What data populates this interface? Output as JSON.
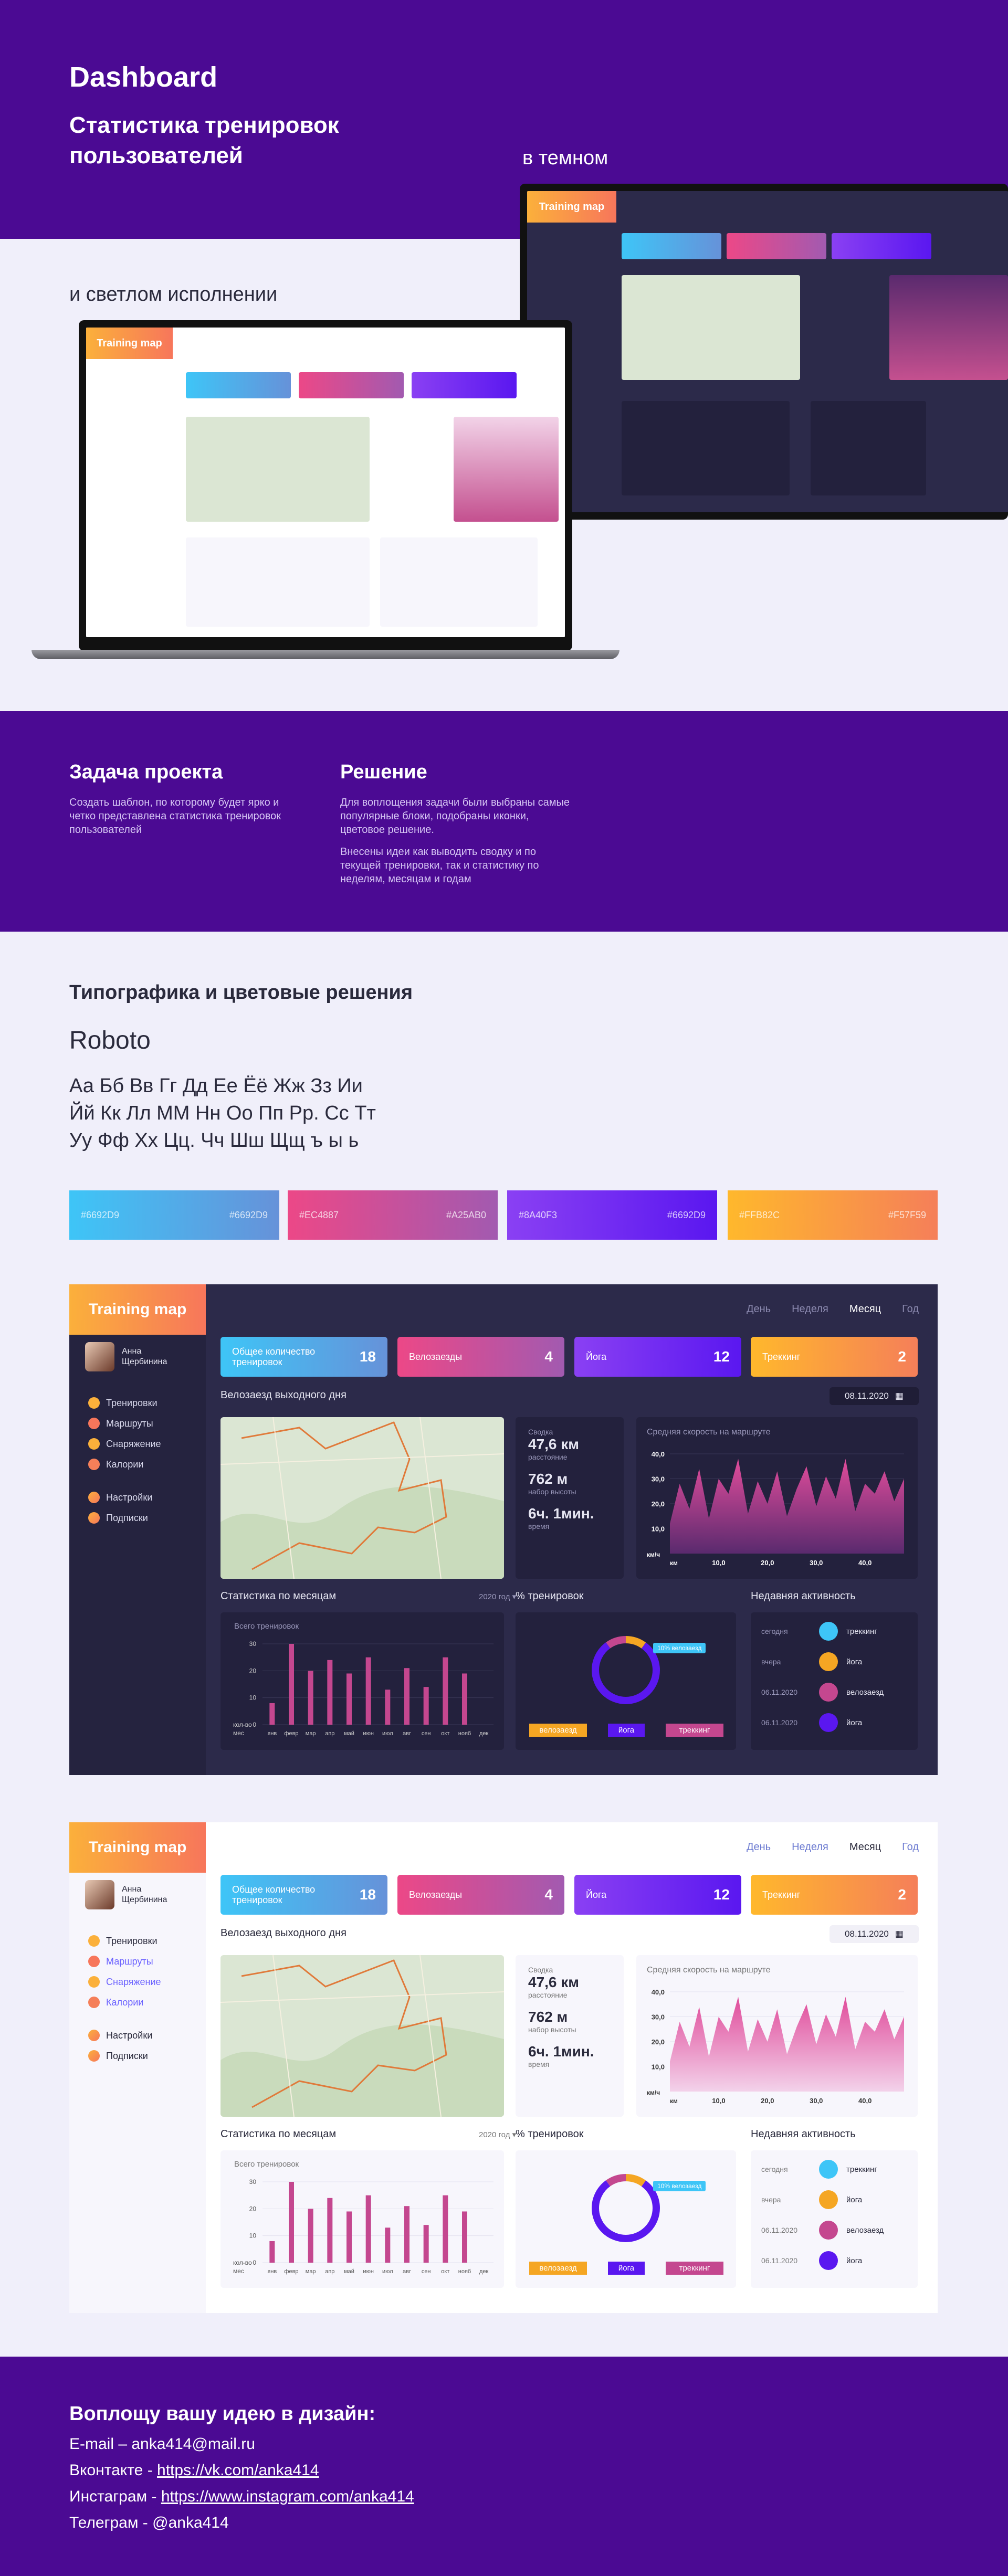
{
  "hero": {
    "title": "Dashboard",
    "subtitle": "Статистика тренировок пользователей",
    "dark_caption": "в темном",
    "light_caption": "и светлом исполнении"
  },
  "task": {
    "title": "Задача проекта",
    "text": "Создать шаблон, по которому будет ярко и четко представлена статистика тренировок пользователей",
    "solution_title": "Решение",
    "solution_p1": "Для воплощения задачи были выбраны самые популярные блоки, подобраны иконки, цветовое решение.",
    "solution_p2": "Внесены идеи как выводить сводку и по текущей тренировки, так и статистику по неделям, месяцам и годам"
  },
  "typography": {
    "title": "Типографика и цветовые решения",
    "font": "Roboto",
    "line1": "Аа Бб Вв Гг Дд Ее Ёё Жж Зз Ии",
    "line2": "Йй Кк Лл ММ Нн Оо Пп Рр. Сс Тт",
    "line3": "Уу Фф Хх Цц. Чч Шш Щщ ъ ы ь",
    "swatches": [
      {
        "from": "#6692D9",
        "to": "#6692D9"
      },
      {
        "from": "#EC4887",
        "to": "#A25AB0"
      },
      {
        "from": "#8A40F3",
        "to": "#6692D9"
      },
      {
        "from": "#FFB82C",
        "to": "#F57F59"
      }
    ]
  },
  "dashboard": {
    "logo": "Training map",
    "user": "Анна Щербинина",
    "nav": [
      "Тренировки",
      "Маршруты",
      "Снаряжение",
      "Калории"
    ],
    "nav2": [
      "Настройки",
      "Подписки"
    ],
    "periods": [
      "День",
      "Неделя",
      "Месяц",
      "Год"
    ],
    "kpis": [
      {
        "label": "Общее количество тренировок",
        "value": "18"
      },
      {
        "label": "Велозаезды",
        "value": "4"
      },
      {
        "label": "Йога",
        "value": "12"
      },
      {
        "label": "Треккинг",
        "value": "2"
      }
    ],
    "date": "08.11.2020",
    "ride_title": "Велозаезд выходного дня",
    "summary": {
      "title": "Сводка",
      "distance": "47,6 км",
      "distance_label": "расстояние",
      "height": "762 м",
      "height_label": "набор высоты",
      "time": "6ч. 1мин.",
      "time_label": "время"
    },
    "speed_title": "Средняя скорость на маршруте",
    "speed_unit": "км/ч",
    "speed_xunit": "км",
    "monthly_title": "Статистика по месяцам",
    "year": "2020 год",
    "monthly_sub": "Всего тренировок",
    "monthly_ylabel": "кол-во",
    "monthly_xlabel": "мес",
    "percent_title": "% тренировок",
    "percent_label": "10% велозаезд",
    "percent_legend": [
      "велозаезд",
      "йога",
      "треккинг"
    ],
    "activity_title": "Недавняя активность",
    "activity": [
      {
        "when": "сегодня",
        "what": "треккинг"
      },
      {
        "when": "вчера",
        "what": "йога"
      },
      {
        "when": "06.11.2020",
        "what": "велозаезд"
      },
      {
        "when": "06.11.2020",
        "what": "йога"
      }
    ]
  },
  "chart_data": [
    {
      "type": "area",
      "title": "Средняя скорость на маршруте",
      "ylabel": "км/ч",
      "xlabel": "км",
      "x_ticks": [
        "10,0",
        "20,0",
        "30,0",
        "40,0"
      ],
      "y_ticks": [
        "40,0",
        "30,0",
        "20,0",
        "10,0"
      ],
      "ylim": [
        0,
        40
      ],
      "x": [
        0,
        2,
        4,
        6,
        8,
        10,
        12,
        14,
        16,
        18,
        20,
        22,
        24,
        26,
        28,
        30,
        32,
        34,
        36,
        38,
        40,
        42,
        44,
        46,
        48
      ],
      "values": [
        12,
        28,
        18,
        34,
        14,
        30,
        24,
        38,
        16,
        29,
        20,
        33,
        15,
        26,
        35,
        19,
        31,
        22,
        38,
        17,
        28,
        24,
        33,
        21,
        30
      ]
    },
    {
      "type": "bar",
      "title": "Всего тренировок",
      "ylabel": "кол-во",
      "xlabel": "мес",
      "y_ticks": [
        "30",
        "20",
        "10",
        "0"
      ],
      "ylim": [
        0,
        35
      ],
      "categories": [
        "янв",
        "февр",
        "мар",
        "апр",
        "май",
        "июн",
        "июл",
        "авг",
        "сен",
        "окт",
        "нояб",
        "дек"
      ],
      "values": [
        8,
        30,
        20,
        24,
        19,
        25,
        13,
        21,
        14,
        25,
        19,
        0
      ]
    },
    {
      "type": "pie",
      "title": "% тренировок",
      "categories": [
        "велозаезд",
        "йога",
        "треккинг"
      ],
      "values": [
        10,
        80,
        10
      ]
    }
  ],
  "contact": {
    "title": "Воплощу вашу идею в дизайн:",
    "email": "E-mail – anka414@mail.ru",
    "vk_label": "Вконтакте - ",
    "vk": "https://vk.com/anka414",
    "ig_label": "Инстаграм - ",
    "ig": "https://www.instagram.com/anka414",
    "tg": "Телеграм - @anka414"
  }
}
